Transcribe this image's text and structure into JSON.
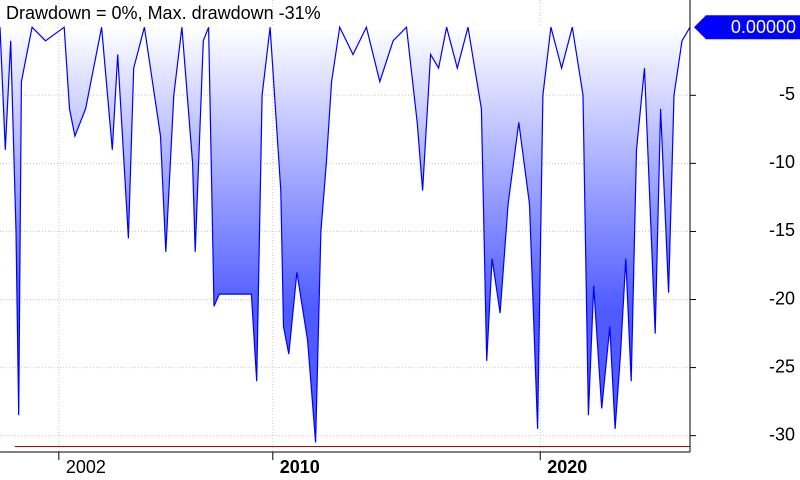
{
  "chart_data": {
    "type": "line",
    "title": "Drawdown = 0%, Max. drawdown -31%",
    "x": [
      1999.8,
      2000.0,
      2000.2,
      2000.4,
      2000.5,
      2000.6,
      2000.8,
      2001.0,
      2001.5,
      2002.2,
      2002.4,
      2002.6,
      2003.0,
      2003.3,
      2003.6,
      2004.0,
      2004.2,
      2004.6,
      2004.8,
      2005.2,
      2005.8,
      2006.0,
      2006.3,
      2006.6,
      2007.0,
      2007.1,
      2007.4,
      2007.6,
      2007.8,
      2008.0,
      2009.2,
      2009.4,
      2009.6,
      2009.9,
      2010.3,
      2010.4,
      2010.6,
      2010.9,
      2011.3,
      2011.6,
      2011.8,
      2012.0,
      2012.2,
      2012.5,
      2013.0,
      2013.5,
      2014.0,
      2014.5,
      2015.0,
      2015.4,
      2015.6,
      2015.9,
      2016.2,
      2016.5,
      2016.9,
      2017.3,
      2017.8,
      2018.0,
      2018.2,
      2018.5,
      2018.8,
      2019.2,
      2019.6,
      2019.9,
      2020.1,
      2020.4,
      2020.8,
      2021.2,
      2021.6,
      2021.8,
      2022.0,
      2022.3,
      2022.6,
      2022.8,
      2023.0,
      2023.2,
      2023.4,
      2023.6,
      2023.9,
      2024.3,
      2024.5,
      2024.8,
      2025.0,
      2025.3,
      2025.6
    ],
    "series": [
      {
        "color": "#0000ff",
        "values": [
          0,
          -9,
          -1,
          -15,
          -28.5,
          -4,
          -2,
          0,
          -1,
          0,
          -6,
          -8,
          -6,
          -3,
          0,
          -9,
          -2,
          -15.5,
          -3,
          0,
          -8,
          -16.5,
          -5,
          0,
          -10,
          -16.5,
          -1,
          0,
          -20.5,
          -19.6,
          -19.6,
          -26,
          -5,
          0,
          -12,
          -22,
          -24,
          -18,
          -23,
          -30.5,
          -15,
          -10,
          -4,
          0,
          -2,
          0,
          -4,
          -1,
          0,
          -7,
          -12,
          -2,
          -3,
          0,
          -3,
          0,
          -6,
          -24.5,
          -17,
          -21,
          -13,
          -7,
          -13,
          -29.5,
          -5,
          0,
          -3,
          0,
          -5,
          -28.5,
          -19,
          -28,
          -22,
          -29.5,
          -24,
          -17,
          -26,
          -9,
          -3,
          -22.5,
          -6,
          -19.5,
          -5,
          -1,
          0
        ]
      }
    ],
    "fill_color": "#4f5bff",
    "reference_line": {
      "value": -30.8,
      "color": "#c00000"
    },
    "last_value": {
      "value": 0,
      "label": "0.00000"
    },
    "xlim": [
      1999.8,
      2025.6
    ],
    "xticks": [
      2002,
      2010,
      2020
    ],
    "ylim": [
      -31.2,
      2
    ],
    "yticks": [
      -30,
      -25,
      -20,
      -15,
      -10,
      -5
    ],
    "grid": true
  }
}
